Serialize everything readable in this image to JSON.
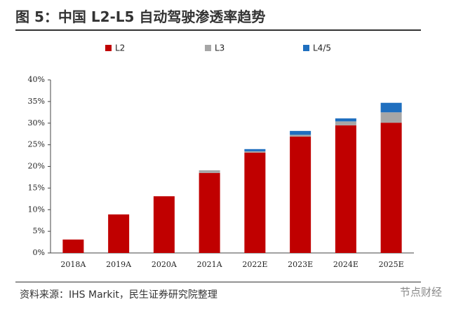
{
  "chart_data": {
    "type": "stacked-bar",
    "title": "图 5：中国 L2-L5 自动驾驶渗透率趋势",
    "source": "资料来源：IHS Markit，民生证券研究院整理",
    "watermark": "节点财经",
    "categories": [
      "2018A",
      "2019A",
      "2020A",
      "2021A",
      "2022E",
      "2023E",
      "2024E",
      "2025E"
    ],
    "series": [
      {
        "name": "L2",
        "color": "#c00000",
        "values": [
          3.1,
          8.9,
          13.1,
          18.5,
          23.2,
          26.9,
          29.5,
          30.1
        ]
      },
      {
        "name": "L3",
        "color": "#a6a6a6",
        "values": [
          0,
          0,
          0,
          0.6,
          0.3,
          0.4,
          0.9,
          2.4
        ]
      },
      {
        "name": "L4/5",
        "color": "#1f6fbf",
        "values": [
          0,
          0,
          0,
          0,
          0.5,
          0.9,
          0.7,
          2.2
        ]
      }
    ],
    "ylim": [
      0,
      40
    ],
    "yticks": [
      {
        "value": 0,
        "label": "0%"
      },
      {
        "value": 5,
        "label": "5%"
      },
      {
        "value": 10,
        "label": "10%"
      },
      {
        "value": 15,
        "label": "15%"
      },
      {
        "value": 20,
        "label": "20%"
      },
      {
        "value": 25,
        "label": "25%"
      },
      {
        "value": 30,
        "label": "30%"
      },
      {
        "value": 35,
        "label": "35%"
      },
      {
        "value": 40,
        "label": "40%"
      }
    ],
    "legend": "top"
  }
}
